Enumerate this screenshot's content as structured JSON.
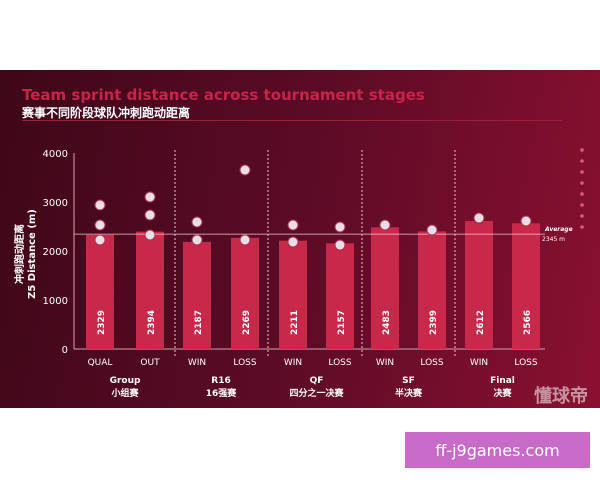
{
  "chart_data": {
    "type": "bar",
    "title": "Team sprint distance across tournament stages",
    "subtitle": "赛事不同阶段球队冲刺跑动距离",
    "ylabel": [
      "冲刺跑动距离",
      "Z5 Distance (m)"
    ],
    "ylim": [
      0,
      4000
    ],
    "yticks": [
      0,
      1000,
      2000,
      3000,
      4000
    ],
    "categories": [
      "QUAL",
      "OUT",
      "WIN",
      "LOSS",
      "WIN",
      "LOSS",
      "WIN",
      "LOSS",
      "WIN",
      "LOSS"
    ],
    "values": [
      2329,
      2394,
      2187,
      2269,
      2211,
      2157,
      2483,
      2399,
      2612,
      2566
    ],
    "groups": [
      {
        "en": "Group",
        "zh": "小组赛"
      },
      {
        "en": "R16",
        "zh": "16强赛"
      },
      {
        "en": "QF",
        "zh": "四分之一决赛"
      },
      {
        "en": "SF",
        "zh": "半决赛"
      },
      {
        "en": "Final",
        "zh": "决赛"
      }
    ],
    "average": {
      "label": "Average",
      "value_text": "2345 m",
      "value": 2345
    },
    "colors": {
      "bar": "#c8284a",
      "text": "#ffffff"
    }
  },
  "watermark": "懂球帝",
  "ad": "ff-j9games.com"
}
